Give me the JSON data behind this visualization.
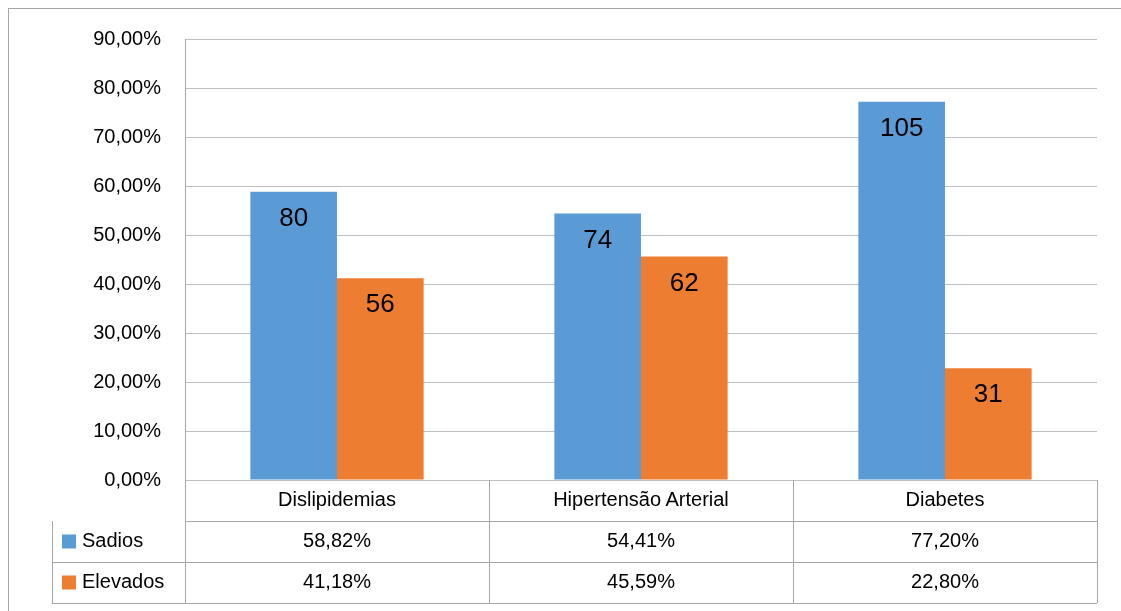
{
  "chart_data": {
    "type": "bar",
    "categories": [
      "Dislipidemias",
      "Hipertensão Arterial",
      "Diabetes"
    ],
    "series": [
      {
        "name": "Sadios",
        "color": "#5b9bd5",
        "values": [
          58.82,
          54.41,
          77.2
        ],
        "value_labels": [
          "58,82%",
          "54,41%",
          "77,20%"
        ]
      },
      {
        "name": "Elevados",
        "color": "#ed7d31",
        "values": [
          41.18,
          45.59,
          22.8
        ],
        "value_labels": [
          "41,18%",
          "45,59%",
          "22,80%"
        ]
      }
    ],
    "ylim": [
      0,
      90
    ],
    "yticks": [
      {
        "value": 0,
        "label": "0,00%"
      },
      {
        "value": 10,
        "label": "10,00%"
      },
      {
        "value": 20,
        "label": "20,00%"
      },
      {
        "value": 30,
        "label": "30,00%"
      },
      {
        "value": 40,
        "label": "40,00%"
      },
      {
        "value": 50,
        "label": "50,00%"
      },
      {
        "value": 60,
        "label": "60,00%"
      },
      {
        "value": 70,
        "label": "70,00%"
      },
      {
        "value": 80,
        "label": "80,00%"
      },
      {
        "value": 90,
        "label": "90,00%"
      }
    ],
    "annotations": [
      {
        "text": "80",
        "x": "Dislipidemias",
        "y": 58.82
      },
      {
        "text": "56",
        "x": "Dislipidemias",
        "y": 41.18
      },
      {
        "text": "74",
        "x": "Hipertensão Arterial",
        "y": 54.41
      },
      {
        "text": "62",
        "x": "Hipertensão Arterial",
        "y": 45.59
      },
      {
        "text": "105",
        "x": "Diabetes",
        "y": 77.2
      },
      {
        "text": "31",
        "x": "Diabetes",
        "y": 22.8
      }
    ],
    "grid": "y",
    "legend": "bottom"
  }
}
